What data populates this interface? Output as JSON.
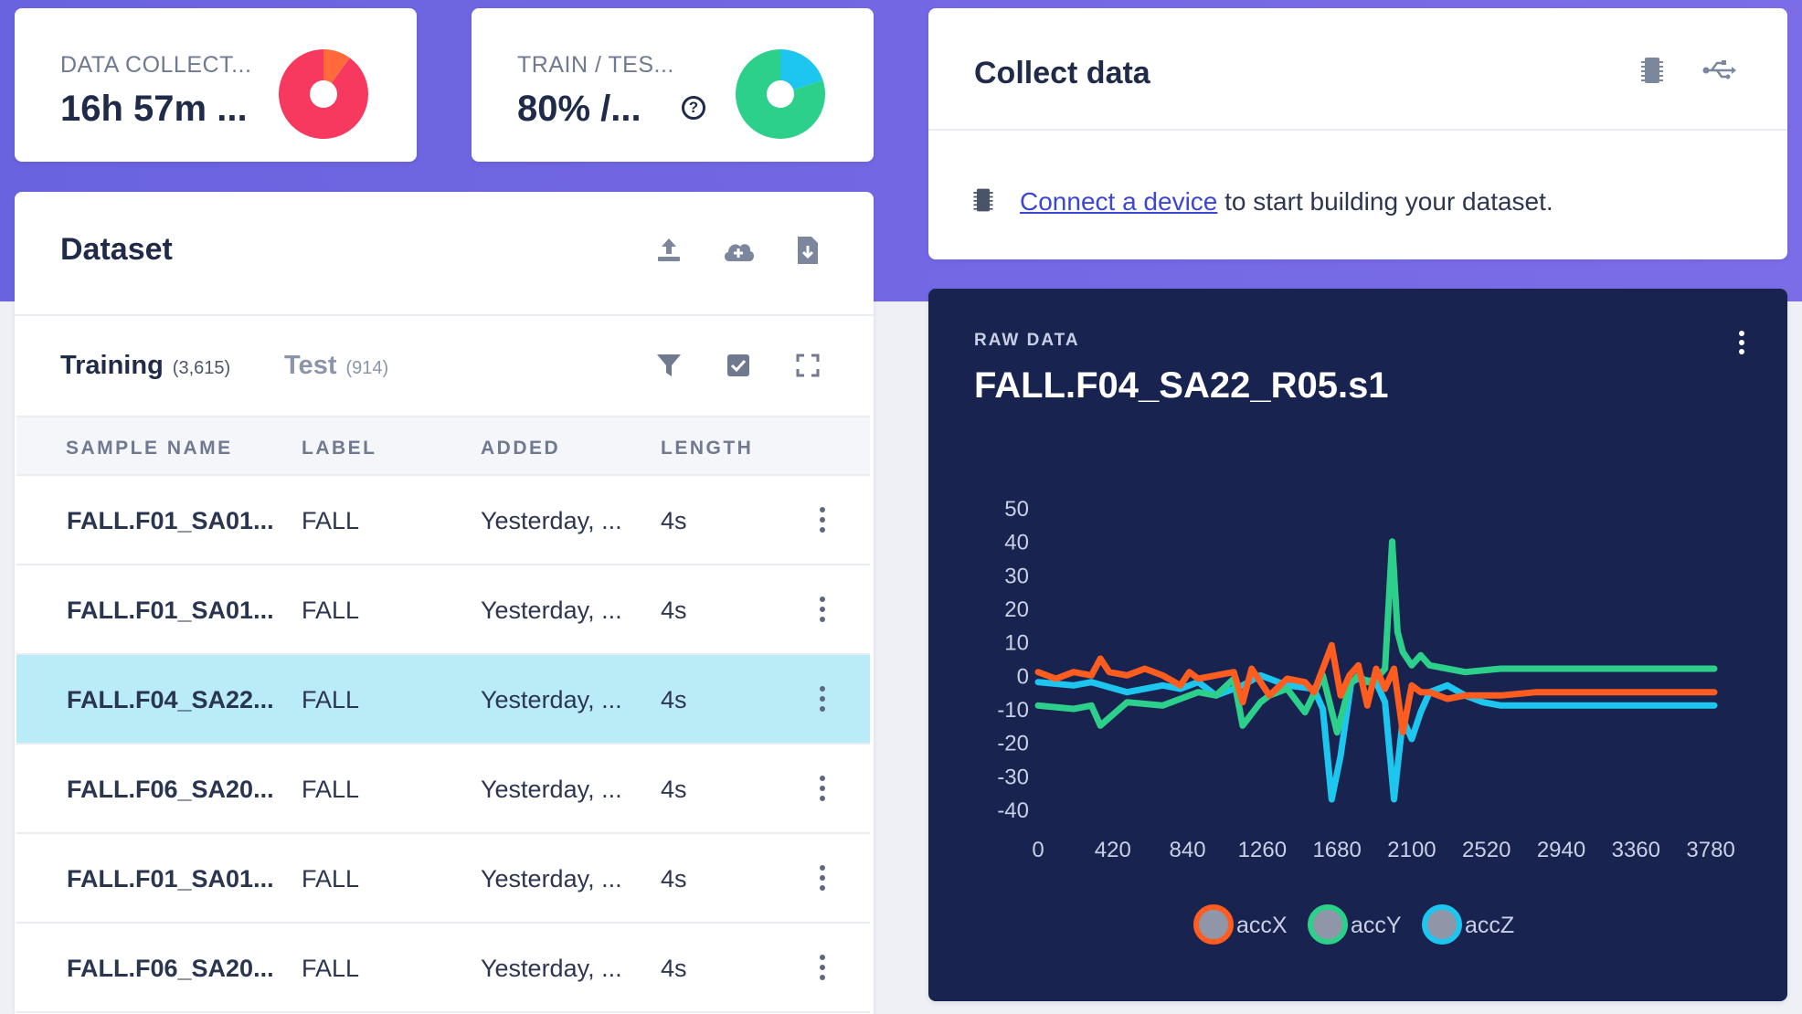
{
  "stats": {
    "collected": {
      "label": "DATA COLLECT...",
      "value": "16h 57m ...",
      "pie_fractions": [
        0.1,
        0.9
      ],
      "colors": [
        "#ff6a3d",
        "#f7385f"
      ]
    },
    "split": {
      "label": "TRAIN / TES...",
      "value": "80% /...",
      "help": "?",
      "pie_fractions": [
        0.2,
        0.8
      ],
      "colors": [
        "#1dc6ee",
        "#2dd08a"
      ]
    }
  },
  "dataset": {
    "title": "Dataset",
    "icons": [
      "upload-icon",
      "cloud-add-icon",
      "download-file-icon"
    ],
    "tabs": [
      {
        "label": "Training",
        "count": "(3,615)"
      },
      {
        "label": "Test",
        "count": "(914)"
      }
    ],
    "toolbar_icons": [
      "filter-icon",
      "checkbox-icon",
      "expand-icon"
    ],
    "columns": [
      "SAMPLE NAME",
      "LABEL",
      "ADDED",
      "LENGTH"
    ],
    "rows": [
      {
        "name": "FALL.F01_SA01...",
        "label": "FALL",
        "added": "Yesterday, ...",
        "length": "4s",
        "selected": false
      },
      {
        "name": "FALL.F01_SA01...",
        "label": "FALL",
        "added": "Yesterday, ...",
        "length": "4s",
        "selected": false
      },
      {
        "name": "FALL.F04_SA22...",
        "label": "FALL",
        "added": "Yesterday, ...",
        "length": "4s",
        "selected": true
      },
      {
        "name": "FALL.F06_SA20...",
        "label": "FALL",
        "added": "Yesterday, ...",
        "length": "4s",
        "selected": false
      },
      {
        "name": "FALL.F01_SA01...",
        "label": "FALL",
        "added": "Yesterday, ...",
        "length": "4s",
        "selected": false
      },
      {
        "name": "FALL.F06_SA20...",
        "label": "FALL",
        "added": "Yesterday, ...",
        "length": "4s",
        "selected": false
      }
    ]
  },
  "collect": {
    "title": "Collect data",
    "link_text": "Connect a device",
    "rest_text": " to start building your dataset.",
    "icons": [
      "chip-icon",
      "usb-icon"
    ]
  },
  "raw": {
    "kicker": "RAW DATA",
    "title": "FALL.F04_SA22_R05.s1"
  },
  "chart_data": {
    "type": "line",
    "title": "FALL.F04_SA22_R05.s1",
    "xlabel": "",
    "ylabel": "",
    "xlim": [
      0,
      3800
    ],
    "ylim": [
      -40,
      50
    ],
    "xticks": [
      0,
      420,
      840,
      1260,
      1680,
      2100,
      2520,
      2940,
      3360,
      3780
    ],
    "yticks": [
      50,
      40,
      30,
      20,
      10,
      0,
      -10,
      -20,
      -30,
      -40
    ],
    "legend_position": "bottom",
    "grid": false,
    "series": [
      {
        "name": "accZ",
        "color": "#1dc6ee",
        "x": [
          0,
          200,
          300,
          500,
          700,
          800,
          900,
          1000,
          1150,
          1250,
          1400,
          1550,
          1600,
          1650,
          1700,
          1760,
          1800,
          1900,
          1950,
          2000,
          2050,
          2100,
          2150,
          2200,
          2300,
          2400,
          2500,
          2600,
          2800,
          3000,
          3200,
          3400,
          3600,
          3800
        ],
        "y": [
          -2,
          -3,
          -2,
          -5,
          -3,
          -4,
          -2,
          -6,
          -3,
          0,
          -3,
          -4,
          -10,
          -37,
          -24,
          -2,
          -1,
          -2,
          -8,
          -37,
          -13,
          -19,
          -11,
          -5,
          -3,
          -6,
          -8,
          -9,
          -9,
          -9,
          -9,
          -9,
          -9,
          -9
        ]
      },
      {
        "name": "accY",
        "color": "#2dd08a",
        "x": [
          0,
          200,
          300,
          350,
          500,
          700,
          800,
          900,
          1000,
          1100,
          1150,
          1250,
          1300,
          1400,
          1500,
          1600,
          1680,
          1750,
          1800,
          1850,
          1900,
          1950,
          1990,
          2020,
          2050,
          2100,
          2150,
          2200,
          2300,
          2400,
          2600,
          2800,
          3000,
          3200,
          3400,
          3600,
          3800
        ],
        "y": [
          -9,
          -10,
          -9,
          -15,
          -8,
          -9,
          -7,
          -5,
          -6,
          -1,
          -15,
          -8,
          -6,
          -4,
          -11,
          0,
          -17,
          -3,
          0,
          -2,
          -1,
          2,
          40,
          13,
          7,
          3,
          6,
          3,
          2,
          1,
          2,
          2,
          2,
          2,
          2,
          2,
          2
        ]
      },
      {
        "name": "accX",
        "color": "#ff5c1f",
        "x": [
          0,
          100,
          200,
          300,
          350,
          400,
          500,
          600,
          700,
          800,
          850,
          900,
          1000,
          1100,
          1150,
          1200,
          1300,
          1400,
          1500,
          1550,
          1600,
          1650,
          1700,
          1750,
          1800,
          1850,
          1900,
          1950,
          2000,
          2050,
          2100,
          2150,
          2200,
          2300,
          2400,
          2600,
          2800,
          3000,
          3200,
          3400,
          3600,
          3800
        ],
        "y": [
          1,
          -1,
          1,
          0,
          5,
          1,
          0,
          2,
          0,
          -3,
          1,
          -1,
          0,
          1,
          -8,
          2,
          -6,
          -1,
          -2,
          -5,
          2,
          9,
          -6,
          0,
          3,
          -9,
          2,
          -4,
          2,
          -17,
          -3,
          -5,
          -5,
          -7,
          -6,
          -6,
          -5,
          -5,
          -5,
          -5,
          -5,
          -5
        ]
      }
    ]
  }
}
